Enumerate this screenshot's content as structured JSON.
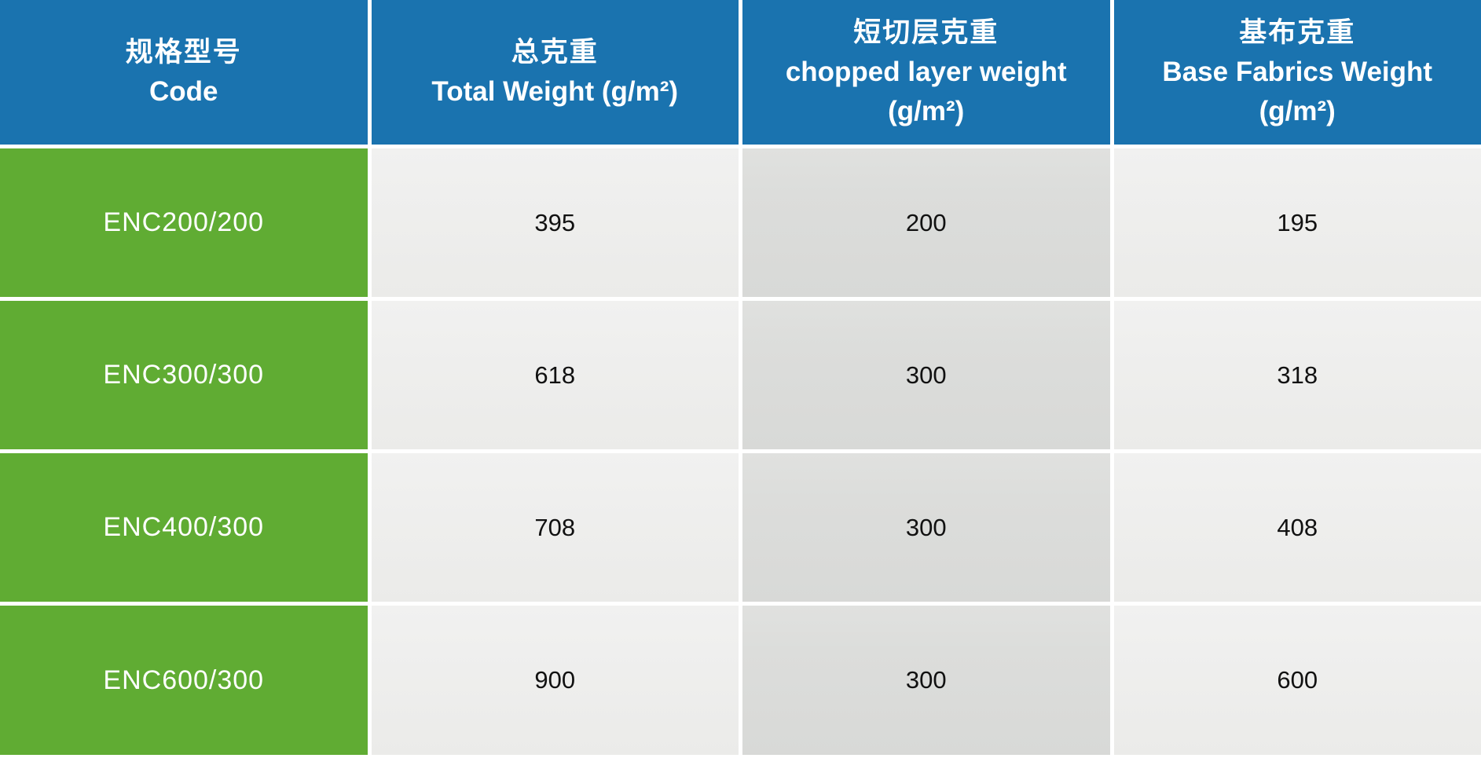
{
  "table": {
    "columns": [
      {
        "zh": "规格型号",
        "en": "Code",
        "unit": ""
      },
      {
        "zh": "总克重",
        "en": "Total Weight (g/m²)",
        "unit": ""
      },
      {
        "zh": "短切层克重",
        "en": "chopped layer weight",
        "unit": "(g/m²)"
      },
      {
        "zh": "基布克重",
        "en": "Base Fabrics Weight",
        "unit": "(g/m²)"
      }
    ],
    "rows": [
      {
        "code": "ENC200/200",
        "total_weight": "395",
        "chopped_layer_weight": "200",
        "base_fabrics_weight": "195"
      },
      {
        "code": "ENC300/300",
        "total_weight": "618",
        "chopped_layer_weight": "300",
        "base_fabrics_weight": "318"
      },
      {
        "code": "ENC400/300",
        "total_weight": "708",
        "chopped_layer_weight": "300",
        "base_fabrics_weight": "408"
      },
      {
        "code": "ENC600/300",
        "total_weight": "900",
        "chopped_layer_weight": "300",
        "base_fabrics_weight": "600"
      }
    ]
  },
  "colors": {
    "header-bg": "#1a73af",
    "code-bg": "#60ac33",
    "cell-light": "#efefee",
    "cell-dark": "#dcdddb",
    "separator": "#ffffff",
    "header-text": "#ffffff",
    "code-text": "#ffffff",
    "value-text": "#111111"
  }
}
